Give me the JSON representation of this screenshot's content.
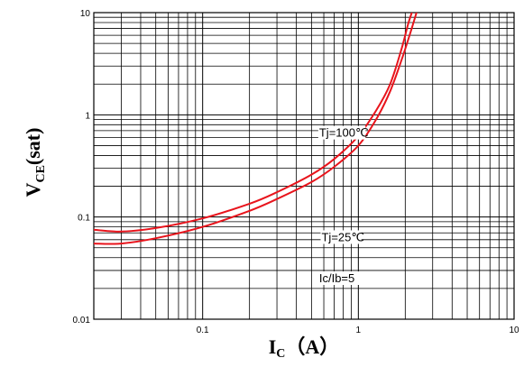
{
  "chart_data": {
    "type": "line",
    "xscale": "log",
    "yscale": "log",
    "xlim": [
      0.02,
      10
    ],
    "ylim": [
      0.01,
      10
    ],
    "grid": true,
    "xlabel": {
      "main": "I",
      "sub": "C",
      "rest": "（A）"
    },
    "ylabel": {
      "main": "V",
      "sub": "CE",
      "rest": "(sat)"
    },
    "x_ticks": [
      {
        "value": 0.1,
        "label": "0.1"
      },
      {
        "value": 1,
        "label": "1"
      },
      {
        "value": 10,
        "label": "10"
      }
    ],
    "y_ticks": [
      {
        "value": 0.01,
        "label": "0.01"
      },
      {
        "value": 0.1,
        "label": "0.1"
      },
      {
        "value": 1,
        "label": "1"
      },
      {
        "value": 10,
        "label": "10"
      }
    ],
    "series": [
      {
        "label": "Tj=100℃",
        "color": "#e8141c",
        "x": [
          0.02,
          0.03,
          0.05,
          0.1,
          0.2,
          0.3,
          0.5,
          0.7,
          1.0,
          1.3,
          1.6,
          1.9,
          2.1,
          2.3
        ],
        "y": [
          0.075,
          0.072,
          0.078,
          0.097,
          0.135,
          0.175,
          0.26,
          0.37,
          0.62,
          1.1,
          2.0,
          4.5,
          8.0,
          12.0
        ]
      },
      {
        "label": "Tj=25℃",
        "color": "#e8141c",
        "x": [
          0.02,
          0.03,
          0.05,
          0.1,
          0.2,
          0.3,
          0.5,
          0.7,
          1.0,
          1.3,
          1.6,
          1.9,
          2.2,
          2.45
        ],
        "y": [
          0.055,
          0.055,
          0.062,
          0.08,
          0.115,
          0.15,
          0.22,
          0.31,
          0.5,
          0.9,
          1.7,
          3.5,
          7.0,
          12.0
        ]
      }
    ],
    "annotations": [
      {
        "text": "Tj=100℃",
        "x": 0.56,
        "y": 0.61
      },
      {
        "text": "Tj=25℃",
        "x": 0.58,
        "y": 0.058
      },
      {
        "text": "Ic/Ib=5",
        "x": 0.56,
        "y": 0.023
      }
    ]
  }
}
